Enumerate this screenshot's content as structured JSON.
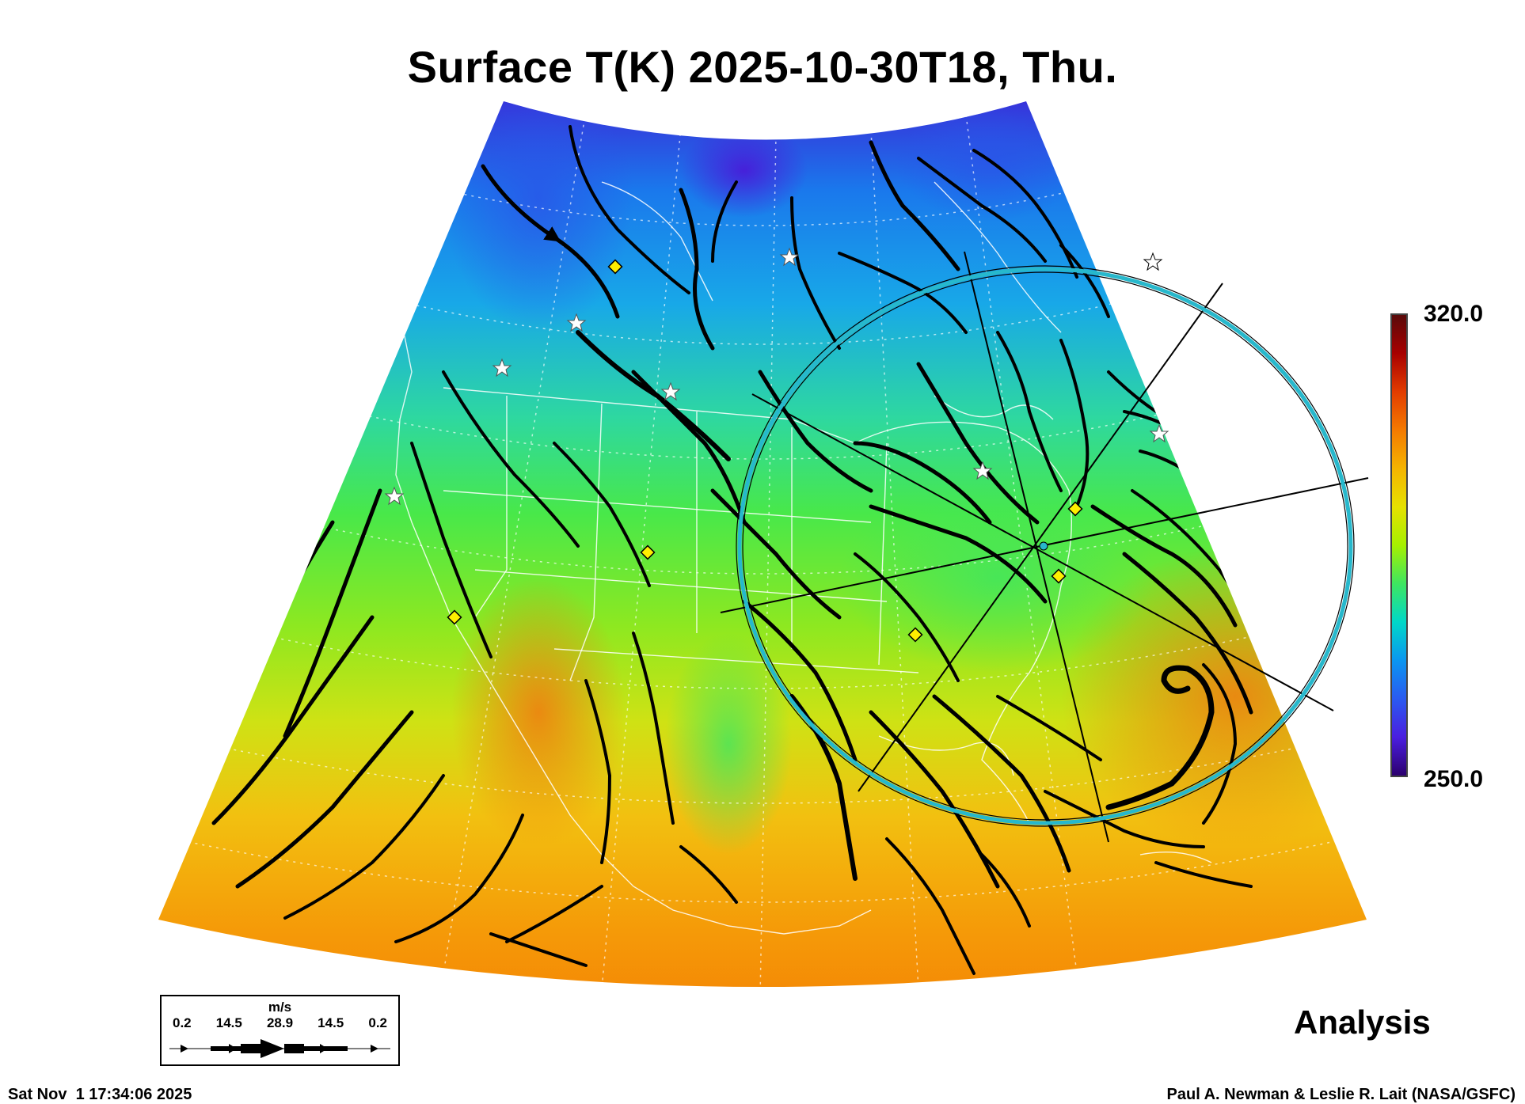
{
  "header": {
    "title": "Surface T(K) 2025-10-30T18, Thu."
  },
  "colorbar": {
    "max_label": "320.0",
    "min_label": "250.0",
    "stops": [
      "#5a0a0a",
      "#a80000",
      "#e23c00",
      "#f47a00",
      "#f5b400",
      "#e6e100",
      "#a6f000",
      "#3ee660",
      "#00d8c8",
      "#0a96f0",
      "#2a5af0",
      "#4a1ee0",
      "#2c006e"
    ]
  },
  "legend": {
    "unit": "m/s",
    "ticks": [
      "0.2",
      "14.5",
      "28.9",
      "14.5",
      "0.2"
    ]
  },
  "footer": {
    "analysis_label": "Analysis",
    "timestamp": "Sat Nov  1 17:34:06 2025",
    "credit": "Paul A. Newman & Leslie R. Lait (NASA/GSFC)"
  },
  "markers": {
    "diamond_color": "#ffee00",
    "star_color": "#ffffff",
    "range_ring_color": "#27b8cc"
  }
}
